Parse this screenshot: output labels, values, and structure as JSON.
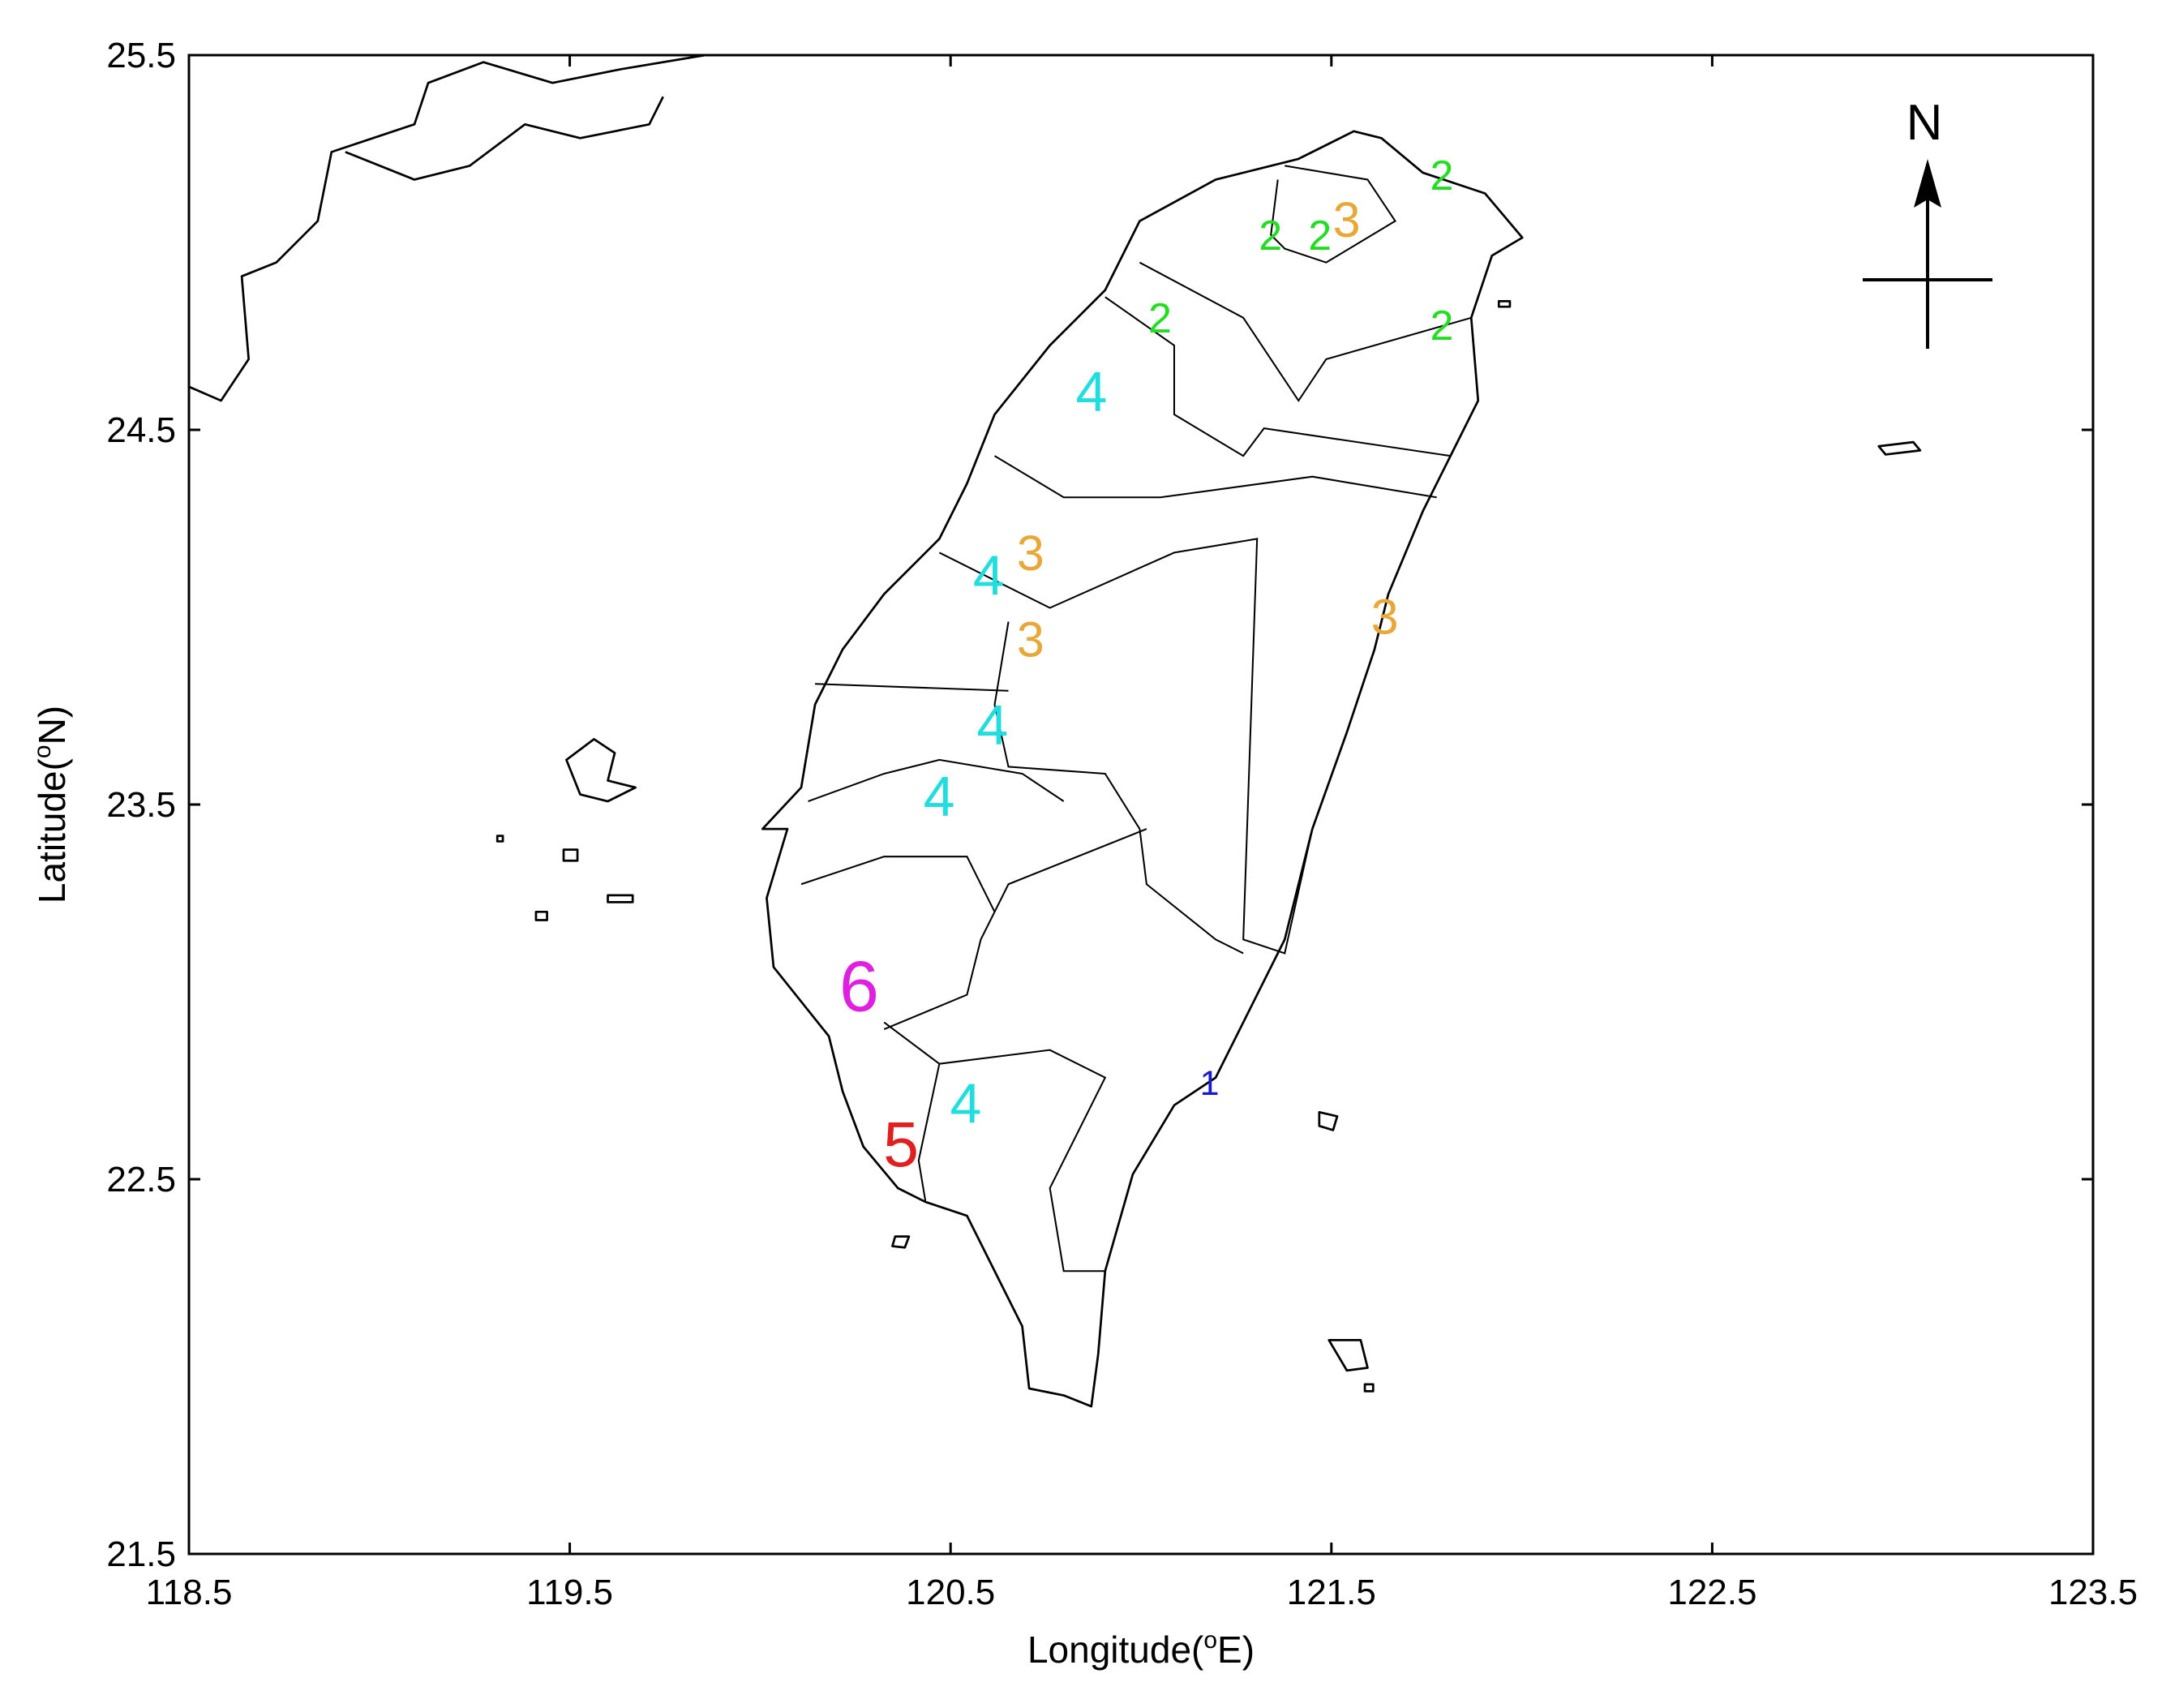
{
  "chart_data": {
    "type": "map_labels",
    "xlabel": {
      "pre": "Longitude(",
      "sup": "o",
      "post": "E)"
    },
    "ylabel": {
      "pre": "Latitude(",
      "sup": "o",
      "post": "N)"
    },
    "north_label": "N",
    "xlim": [
      118.5,
      123.5
    ],
    "xticks": [
      118.5,
      119.5,
      120.5,
      121.5,
      122.5,
      123.5
    ],
    "ylim": [
      21.5,
      25.5
    ],
    "yticks": [
      21.5,
      22.5,
      23.5,
      24.5,
      25.5
    ],
    "x": [
      121.79,
      121.34,
      121.47,
      121.54,
      121.05,
      121.79,
      120.87,
      120.71,
      120.6,
      120.71,
      121.64,
      120.61,
      120.47,
      120.26,
      121.18,
      120.54,
      120.37
    ],
    "y": [
      25.17,
      25.01,
      25.01,
      25.05,
      24.79,
      24.77,
      24.59,
      24.16,
      24.1,
      23.93,
      23.99,
      23.7,
      23.51,
      23.0,
      22.75,
      22.69,
      22.58
    ],
    "values": [
      2,
      2,
      2,
      3,
      2,
      2,
      4,
      3,
      4,
      3,
      3,
      4,
      4,
      6,
      1,
      4,
      5
    ],
    "colors": [
      "#22dd22",
      "#22dd22",
      "#22dd22",
      "#e8a838",
      "#22dd22",
      "#22dd22",
      "#22dddd",
      "#e8a838",
      "#22dddd",
      "#e8a838",
      "#e8a838",
      "#22dddd",
      "#22dddd",
      "#e020e0",
      "#1a1acc",
      "#22dddd",
      "#e02020"
    ]
  }
}
